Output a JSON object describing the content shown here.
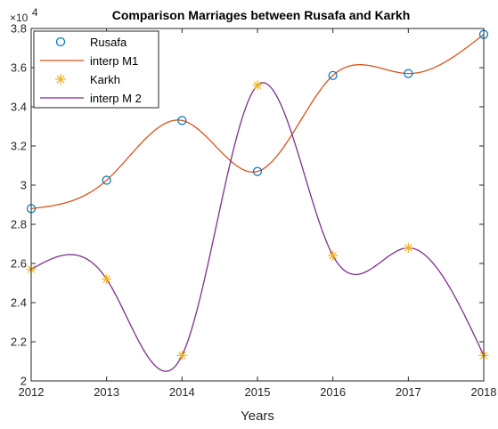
{
  "chart_data": {
    "type": "line",
    "title": "Comparison Marriages between Rusafa and Karkh",
    "xlabel": "Years",
    "ylabel": "",
    "y_exponent_base": "×10",
    "y_exponent_power": "4",
    "xlim": [
      2012,
      2018
    ],
    "ylim": [
      20000,
      38000
    ],
    "grid": false,
    "legend_position": "top-left",
    "x_ticks": [
      2012,
      2013,
      2014,
      2015,
      2016,
      2017,
      2018
    ],
    "x_tick_labels": [
      "2012",
      "2013",
      "2014",
      "2015",
      "2016",
      "2017",
      "2018"
    ],
    "y_ticks": [
      20000,
      22000,
      24000,
      26000,
      28000,
      30000,
      32000,
      34000,
      36000,
      38000
    ],
    "y_tick_labels": [
      "2",
      "2.2",
      "2.4",
      "2.6",
      "2.8",
      "3",
      "3.2",
      "3.4",
      "3.6",
      "3.8"
    ],
    "series": [
      {
        "name": "Rusafa",
        "kind": "markers",
        "marker": "circle",
        "color": "#0072BD",
        "x": [
          2012,
          2013,
          2014,
          2015,
          2016,
          2017,
          2018
        ],
        "y": [
          28800,
          30250,
          33300,
          30700,
          35600,
          35700,
          37700
        ]
      },
      {
        "name": "interp M1",
        "kind": "line",
        "color": "#D95319",
        "interpolates": "Rusafa",
        "x": [
          2012,
          2013,
          2014,
          2015,
          2016,
          2017,
          2018
        ],
        "y": [
          28800,
          30250,
          33300,
          30700,
          35600,
          35700,
          37700
        ]
      },
      {
        "name": "Karkh",
        "kind": "markers",
        "marker": "asterisk",
        "color": "#EDB120",
        "x": [
          2012,
          2013,
          2014,
          2015,
          2016,
          2017,
          2018
        ],
        "y": [
          25700,
          25200,
          21300,
          35100,
          26400,
          26800,
          21300
        ]
      },
      {
        "name": "interp M 2",
        "kind": "line",
        "color": "#7E2F8E",
        "interpolates": "Karkh",
        "x": [
          2012,
          2013,
          2014,
          2015,
          2016,
          2017,
          2018
        ],
        "y": [
          25700,
          25200,
          21300,
          35100,
          26400,
          26800,
          21300
        ]
      }
    ]
  }
}
